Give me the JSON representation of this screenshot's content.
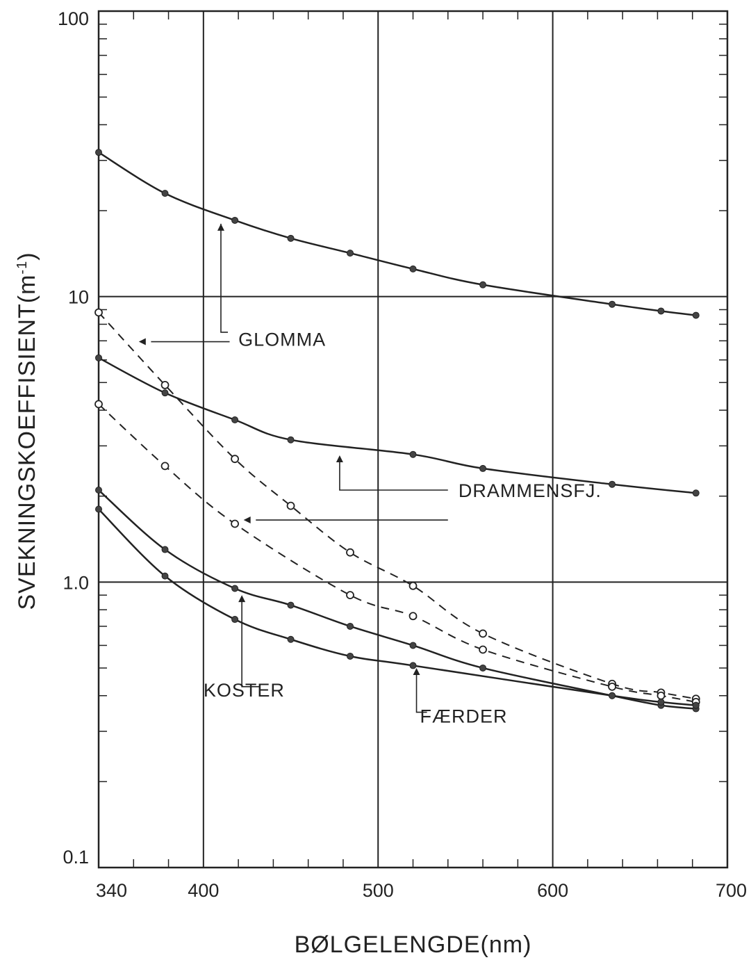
{
  "chart_data": {
    "type": "line",
    "xlabel": "BØLGELENGDE(nm)",
    "ylabel": "SVEKNINGSKOEFFISIENT(m",
    "ylabel_sup": "-1",
    "ylabel_end": ")",
    "xlim": [
      340,
      700
    ],
    "ylim": [
      0.1,
      100
    ],
    "yscale": "log",
    "grid": "major",
    "x_ticks": [
      {
        "value": 340,
        "label": "340"
      },
      {
        "value": 400,
        "label": "400"
      },
      {
        "value": 500,
        "label": "500"
      },
      {
        "value": 600,
        "label": "600"
      },
      {
        "value": 700,
        "label": "700"
      }
    ],
    "y_ticks": [
      {
        "value": 0.1,
        "label": "0.1"
      },
      {
        "value": 1,
        "label": "1.0"
      },
      {
        "value": 10,
        "label": "10"
      },
      {
        "value": 100,
        "label": "100"
      }
    ],
    "series": [
      {
        "name": "",
        "style": "solid",
        "marker": "filled",
        "x": [
          340,
          378,
          418,
          450,
          484,
          520,
          560,
          634,
          662,
          682
        ],
        "y": [
          32,
          23,
          18.5,
          16,
          14.2,
          12.5,
          11,
          9.4,
          8.9,
          8.6
        ]
      },
      {
        "name": "",
        "style": "solid",
        "marker": "filled",
        "x": [
          340,
          378,
          418,
          450,
          520,
          560,
          634,
          682
        ],
        "y": [
          6.1,
          4.6,
          3.7,
          3.15,
          2.8,
          2.5,
          2.2,
          2.05
        ]
      },
      {
        "name": "",
        "style": "dashed",
        "marker": "open",
        "x": [
          340,
          378,
          418,
          450,
          484,
          520,
          560,
          634,
          662,
          682
        ],
        "y": [
          8.8,
          4.9,
          2.7,
          1.85,
          1.27,
          0.97,
          0.66,
          0.44,
          0.41,
          0.39
        ]
      },
      {
        "name": "",
        "style": "dashed",
        "marker": "open",
        "x": [
          340,
          378,
          418,
          484,
          520,
          560,
          634,
          662,
          682
        ],
        "y": [
          4.2,
          2.55,
          1.6,
          0.9,
          0.76,
          0.58,
          0.43,
          0.4,
          0.38
        ]
      },
      {
        "name": "",
        "style": "solid",
        "marker": "filled",
        "x": [
          340,
          378,
          418,
          450,
          484,
          520,
          560,
          634,
          662,
          682
        ],
        "y": [
          2.1,
          1.3,
          0.95,
          0.83,
          0.7,
          0.6,
          0.5,
          0.4,
          0.37,
          0.36
        ]
      },
      {
        "name": "",
        "style": "solid",
        "marker": "filled",
        "x": [
          340,
          378,
          418,
          450,
          484,
          520,
          634,
          662,
          682
        ],
        "y": [
          1.8,
          1.05,
          0.74,
          0.63,
          0.55,
          0.51,
          0.4,
          0.38,
          0.37
        ]
      }
    ],
    "annotations": [
      {
        "text": "GLOMMA",
        "x": 420,
        "y": 7.1
      },
      {
        "text": "DRAMMENSFJ.",
        "x": 546,
        "y": 2.1
      },
      {
        "text": "KOSTER",
        "x": 400,
        "y": 0.42
      },
      {
        "text": "FÆRDER",
        "x": 524,
        "y": 0.34
      }
    ]
  }
}
